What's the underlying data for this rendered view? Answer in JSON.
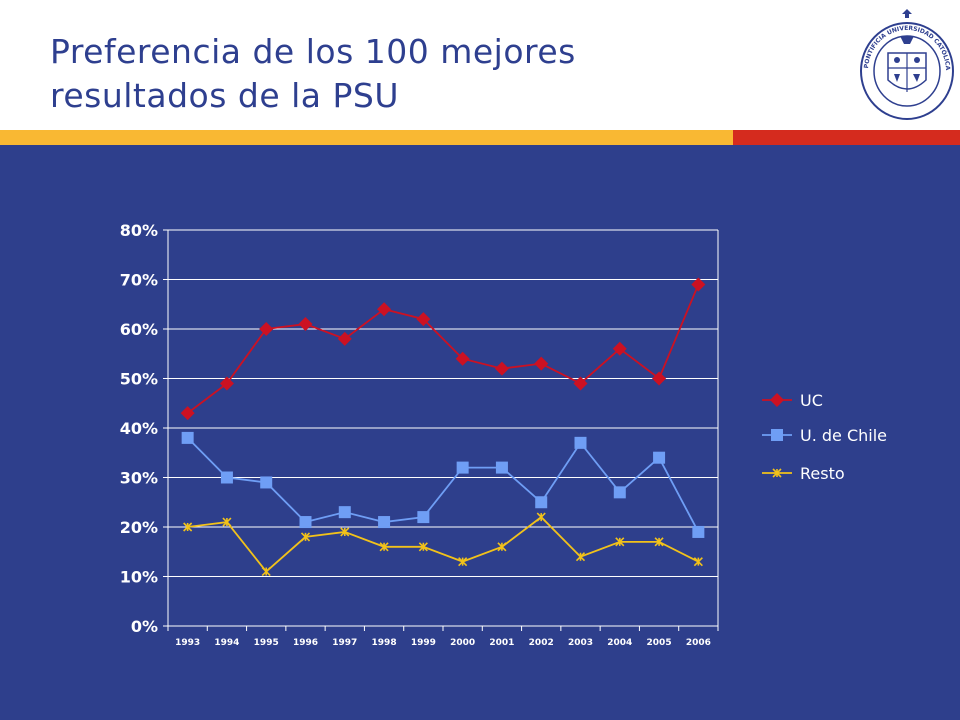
{
  "header": {
    "title_line1": "Preferencia de los 100 mejores",
    "title_line2": "resultados de la PSU"
  },
  "logo": {
    "icon": "pontifical-university-seal-icon",
    "text": "PONTIFICIA UNIVERSIDAD CATÓLICA DE CHILE"
  },
  "colors": {
    "title": "#2e3f8f",
    "background": "#2e3f8c",
    "stripe_gold": "#f9b833",
    "stripe_red": "#d52b1e",
    "grid": "#ffffff",
    "uc": "#cc1122",
    "udechile": "#6f9ef5",
    "resto": "#f2c21a"
  },
  "chart_data": {
    "type": "line",
    "title": "",
    "xlabel": "",
    "ylabel": "",
    "categories": [
      "1993",
      "1994",
      "1995",
      "1996",
      "1997",
      "1998",
      "1999",
      "2000",
      "2001",
      "2002",
      "2003",
      "2004",
      "2005",
      "2006"
    ],
    "yticks": [
      "0%",
      "10%",
      "20%",
      "30%",
      "40%",
      "50%",
      "60%",
      "70%",
      "80%"
    ],
    "ylim": [
      0,
      80
    ],
    "grid": true,
    "legend_position": "right",
    "series": [
      {
        "name": "UC",
        "marker": "diamond",
        "values": [
          43,
          49,
          60,
          61,
          58,
          64,
          62,
          54,
          52,
          53,
          49,
          56,
          50,
          69
        ]
      },
      {
        "name": "U. de Chile",
        "marker": "square",
        "values": [
          38,
          30,
          29,
          21,
          23,
          21,
          22,
          32,
          32,
          25,
          37,
          27,
          34,
          19
        ]
      },
      {
        "name": "Resto",
        "marker": "star",
        "values": [
          20,
          21,
          11,
          18,
          19,
          16,
          16,
          13,
          16,
          22,
          14,
          17,
          17,
          13
        ]
      }
    ]
  }
}
